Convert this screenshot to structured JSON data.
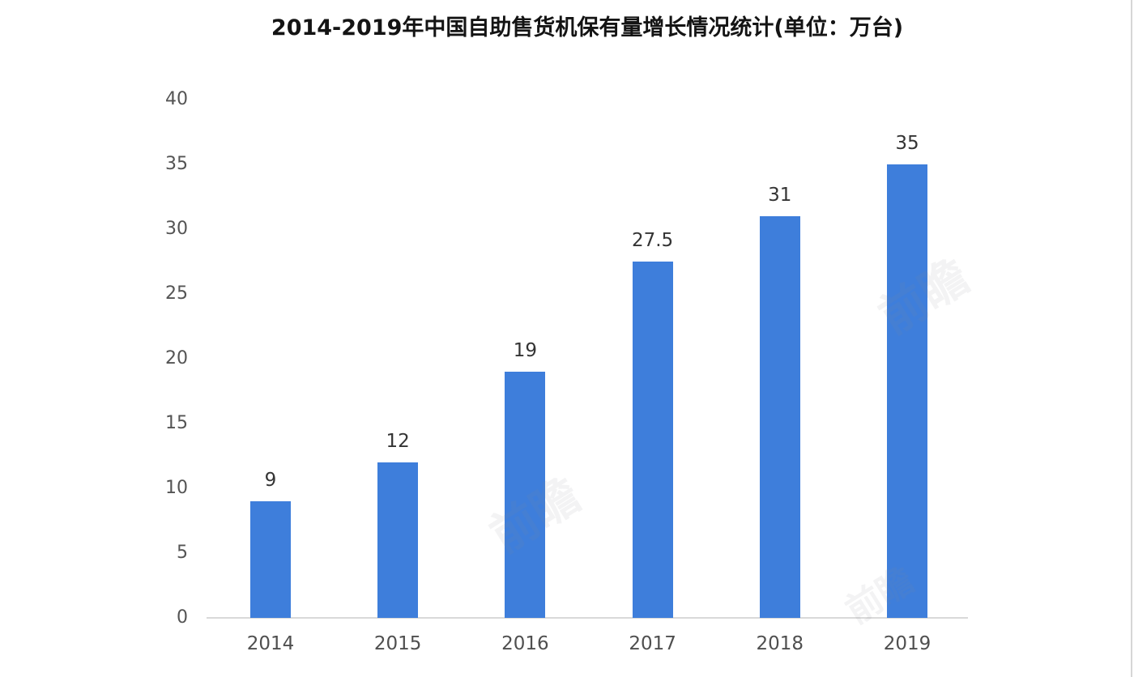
{
  "chart_data": {
    "type": "bar",
    "title": "2014-2019年中国自助售货机保有量增长情况统计(单位：万台)",
    "categories": [
      "2014",
      "2015",
      "2016",
      "2017",
      "2018",
      "2019"
    ],
    "values": [
      9,
      12,
      19,
      27.5,
      31,
      35
    ],
    "value_labels": [
      "9",
      "12",
      "19",
      "27.5",
      "31",
      "35"
    ],
    "xlabel": "",
    "ylabel": "",
    "ylim": [
      0,
      40
    ],
    "yticks": [
      0,
      5,
      10,
      15,
      20,
      25,
      30,
      35,
      40
    ],
    "grid": false,
    "legend_position": "none",
    "colors": {
      "bar": "#3e7edb",
      "baseline": "#d9d9d9",
      "tick_label": "#545454",
      "x_label": "#4f4f4f",
      "value_label": "#343434",
      "title": "#141414"
    }
  },
  "watermark": {
    "text": "前瞻"
  }
}
